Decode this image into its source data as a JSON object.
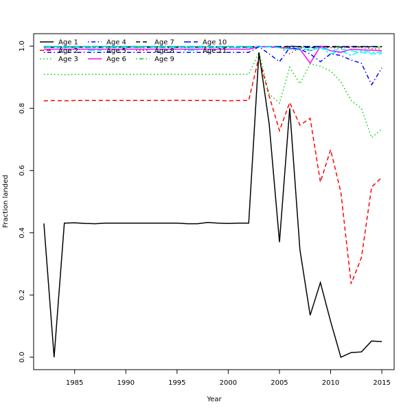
{
  "chart_data": {
    "type": "line",
    "title": "",
    "xlabel": "Year",
    "ylabel": "Fraction landed",
    "xlim": [
      1981,
      2016.2
    ],
    "ylim": [
      -0.04,
      1.04
    ],
    "xticks": [
      "1985",
      "1990",
      "1995",
      "2000",
      "2005",
      "2010",
      "2015"
    ],
    "yticks": [
      "0.0",
      "0.2",
      "0.4",
      "0.6",
      "0.8",
      "1.0"
    ],
    "legend_position": "top-left",
    "x": [
      1982,
      1983,
      1984,
      1985,
      1986,
      1987,
      1988,
      1989,
      1990,
      1991,
      1992,
      1993,
      1994,
      1995,
      1996,
      1997,
      1998,
      1999,
      2000,
      2001,
      2002,
      2003,
      2004,
      2005,
      2006,
      2007,
      2008,
      2009,
      2010,
      2011,
      2012,
      2013,
      2014,
      2015
    ],
    "series": [
      {
        "name": "Age 1",
        "color": "#000000",
        "dash": "solid",
        "values": [
          0.43,
          0.0,
          0.431,
          0.432,
          0.43,
          0.429,
          0.431,
          0.431,
          0.431,
          0.431,
          0.431,
          0.431,
          0.431,
          0.431,
          0.429,
          0.429,
          0.433,
          0.431,
          0.43,
          0.431,
          0.431,
          0.98,
          0.75,
          0.37,
          0.8,
          0.345,
          0.135,
          0.24,
          0.115,
          0.0,
          0.015,
          0.017,
          0.052,
          0.05
        ]
      },
      {
        "name": "Age 2",
        "color": "#ff0000",
        "dash": "dashed",
        "values": [
          0.824,
          0.825,
          0.824,
          0.825,
          0.825,
          0.825,
          0.825,
          0.825,
          0.825,
          0.825,
          0.825,
          0.825,
          0.825,
          0.826,
          0.825,
          0.825,
          0.825,
          0.825,
          0.824,
          0.825,
          0.825,
          0.965,
          0.84,
          0.728,
          0.819,
          0.746,
          0.768,
          0.563,
          0.667,
          0.53,
          0.236,
          0.32,
          0.547,
          0.578
        ]
      },
      {
        "name": "Age 3",
        "color": "#00cd00",
        "dash": "dotted",
        "values": [
          0.909,
          0.909,
          0.908,
          0.909,
          0.909,
          0.909,
          0.909,
          0.909,
          0.909,
          0.909,
          0.909,
          0.909,
          0.909,
          0.909,
          0.909,
          0.909,
          0.909,
          0.909,
          0.909,
          0.909,
          0.909,
          0.98,
          0.846,
          0.817,
          0.932,
          0.879,
          0.943,
          0.935,
          0.92,
          0.885,
          0.825,
          0.8,
          0.706,
          0.733
        ]
      },
      {
        "name": "Age 4",
        "color": "#0000ff",
        "dash": "dotdash",
        "values": [
          0.98,
          0.98,
          0.98,
          0.98,
          0.98,
          0.98,
          0.98,
          0.98,
          0.98,
          0.98,
          0.98,
          0.98,
          0.98,
          0.98,
          0.98,
          0.98,
          0.98,
          0.98,
          0.98,
          0.98,
          0.98,
          0.998,
          0.975,
          0.95,
          0.995,
          0.99,
          0.975,
          0.95,
          0.975,
          0.97,
          0.955,
          0.945,
          0.876,
          0.93
        ]
      },
      {
        "name": "Age 5",
        "color": "#00ffff",
        "dash": "longdash",
        "values": [
          0.998,
          0.998,
          0.998,
          0.998,
          0.998,
          0.998,
          0.998,
          0.998,
          0.998,
          0.998,
          0.998,
          0.998,
          0.998,
          0.998,
          0.998,
          0.998,
          0.998,
          0.998,
          0.998,
          0.998,
          0.998,
          0.999,
          0.998,
          0.995,
          0.99,
          0.988,
          0.99,
          0.995,
          0.985,
          0.99,
          0.985,
          0.98,
          0.975,
          0.975
        ]
      },
      {
        "name": "Age 6",
        "color": "#ff00ff",
        "dash": "solid",
        "values": [
          0.99,
          0.99,
          0.99,
          0.99,
          0.99,
          0.99,
          0.99,
          0.99,
          0.99,
          0.99,
          0.99,
          0.99,
          0.99,
          0.99,
          0.99,
          0.99,
          0.99,
          0.99,
          0.99,
          0.99,
          0.99,
          0.998,
          0.998,
          0.995,
          0.993,
          0.99,
          0.945,
          1.0,
          0.985,
          0.98,
          0.99,
          0.988,
          0.987,
          0.985
        ]
      },
      {
        "name": "Age 7",
        "color": "#000000",
        "dash": "dashed",
        "values": [
          0.997,
          0.997,
          0.997,
          0.997,
          0.997,
          0.997,
          0.997,
          0.997,
          0.997,
          0.997,
          0.997,
          0.997,
          0.997,
          0.997,
          0.997,
          0.997,
          0.997,
          0.997,
          0.997,
          0.997,
          0.997,
          0.999,
          0.997,
          0.996,
          1.0,
          0.998,
          0.995,
          0.998,
          0.998,
          0.997,
          0.997,
          0.998,
          0.998,
          0.998
        ]
      },
      {
        "name": "Age 8",
        "color": "#ff0000",
        "dash": "dotted",
        "values": [
          0.997,
          0.997,
          0.997,
          0.997,
          0.997,
          0.997,
          0.997,
          0.997,
          0.997,
          0.997,
          0.997,
          0.997,
          0.997,
          0.997,
          0.997,
          0.997,
          0.997,
          0.997,
          0.997,
          0.997,
          0.997,
          0.999,
          0.998,
          0.997,
          0.975,
          0.995,
          0.985,
          0.998,
          0.995,
          0.993,
          0.998,
          0.995,
          0.992,
          0.99
        ]
      },
      {
        "name": "Age 9",
        "color": "#00cd00",
        "dash": "dotdash",
        "values": [
          0.998,
          0.998,
          0.998,
          0.998,
          0.998,
          0.998,
          0.998,
          0.998,
          0.998,
          0.998,
          0.998,
          0.998,
          0.998,
          0.998,
          0.998,
          0.998,
          0.998,
          0.998,
          0.998,
          0.998,
          0.998,
          0.999,
          0.998,
          0.997,
          0.996,
          0.997,
          0.995,
          0.995,
          0.998,
          0.997,
          0.997,
          0.998,
          0.997,
          0.997
        ]
      },
      {
        "name": "Age 10",
        "color": "#0000ff",
        "dash": "longdash",
        "values": [
          0.999,
          0.999,
          0.999,
          0.999,
          0.999,
          0.999,
          0.999,
          0.999,
          0.999,
          0.999,
          0.999,
          0.999,
          0.999,
          0.999,
          0.999,
          0.999,
          0.999,
          0.999,
          0.999,
          0.999,
          0.999,
          0.999,
          0.999,
          0.999,
          0.999,
          0.999,
          0.999,
          0.999,
          0.999,
          0.999,
          0.999,
          0.999,
          0.999,
          0.999
        ]
      },
      {
        "name": "Age 11",
        "color": "#00ffff",
        "dash": "twodash",
        "values": [
          0.995,
          0.995,
          0.995,
          0.995,
          0.995,
          0.995,
          0.995,
          0.995,
          0.995,
          0.995,
          0.995,
          0.995,
          0.995,
          0.995,
          0.995,
          0.995,
          0.995,
          0.995,
          0.995,
          0.995,
          0.995,
          0.998,
          0.997,
          0.995,
          0.99,
          0.992,
          0.985,
          0.995,
          0.975,
          0.985,
          0.97,
          0.985,
          0.98,
          0.98
        ]
      }
    ]
  }
}
